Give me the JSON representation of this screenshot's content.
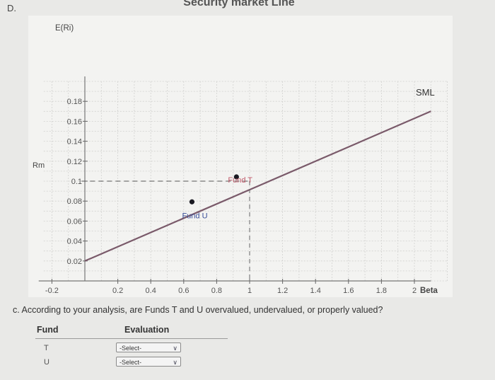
{
  "section_label": "D.",
  "chart_data": {
    "type": "line",
    "title": "Security market Line",
    "ylabel": "E(Ri)",
    "xlabel": "Beta",
    "x_ticks": [
      "-0.2",
      "0.2",
      "0.4",
      "0.6",
      "0.8",
      "1",
      "1.2",
      "1.4",
      "1.6",
      "1.8",
      "2"
    ],
    "y_ticks": [
      "0.18",
      "0.16",
      "0.14",
      "0.12",
      "0.1",
      "0.08",
      "0.06",
      "0.04",
      "0.02"
    ],
    "xlim": [
      -0.2,
      2.2
    ],
    "ylim": [
      0,
      0.2
    ],
    "grid": true,
    "rm_label": "Rm",
    "sml_label": "SML",
    "sml": {
      "beta": [
        0,
        2.1
      ],
      "return": [
        0.02,
        0.17
      ]
    },
    "market_point": {
      "beta": 1.0,
      "return": 0.1
    },
    "funds": [
      {
        "name": "Fund T",
        "beta": 0.92,
        "return": 0.1
      },
      {
        "name": "Fund U",
        "beta": 0.65,
        "return": 0.075
      }
    ]
  },
  "question": "c. According to your analysis, are Funds T and U overvalued, undervalued, or properly valued?",
  "table": {
    "fund_header": "Fund",
    "evaluation_header": "Evaluation",
    "rows": [
      {
        "fund": "T",
        "selected": "-Select-"
      },
      {
        "fund": "U",
        "selected": "-Select-"
      }
    ]
  }
}
